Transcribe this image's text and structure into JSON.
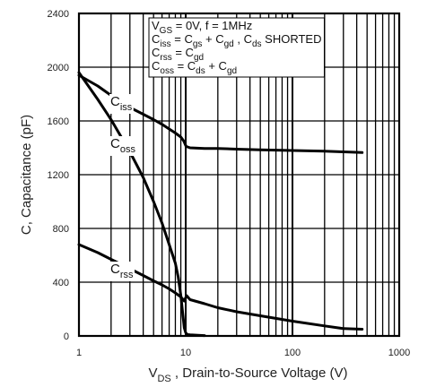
{
  "chart_data": {
    "type": "line",
    "title": "",
    "xlabel": {
      "main": "V",
      "sub": "DS",
      "rest": " , Drain-to-Source Voltage (V)"
    },
    "ylabel": "C, Capacitance (pF)",
    "xscale": "log",
    "xlim": [
      1,
      1000
    ],
    "ylim": [
      0,
      2400
    ],
    "x_ticks": [
      "1",
      "10",
      "100",
      "1000"
    ],
    "y_ticks": [
      "0",
      "400",
      "800",
      "1200",
      "1600",
      "2000",
      "2400"
    ],
    "grid": true,
    "notes": [
      [
        {
          "t": "V"
        },
        {
          "t": "GS",
          "sub": true
        },
        {
          "t": " = 0V,          f = 1MHz"
        }
      ],
      [
        {
          "t": "C"
        },
        {
          "t": "iss",
          "sub": true
        },
        {
          "t": " = C"
        },
        {
          "t": "gs",
          "sub": true
        },
        {
          "t": " + C"
        },
        {
          "t": "gd",
          "sub": true
        },
        {
          "t": " ,   C"
        },
        {
          "t": "ds",
          "sub": true
        },
        {
          "t": "  SHORTED"
        }
      ],
      [
        {
          "t": "C"
        },
        {
          "t": "rss",
          "sub": true
        },
        {
          "t": " = C"
        },
        {
          "t": "gd",
          "sub": true
        }
      ],
      [
        {
          "t": "C"
        },
        {
          "t": "oss",
          "sub": true
        },
        {
          "t": " = C"
        },
        {
          "t": "ds",
          "sub": true
        },
        {
          "t": " + C"
        },
        {
          "t": "gd",
          "sub": true
        }
      ]
    ],
    "series": [
      {
        "name": {
          "main": "C",
          "sub": "iss"
        },
        "x": [
          1,
          1.5,
          2,
          3,
          4,
          5,
          6,
          7,
          8,
          9,
          9.6,
          10.1,
          11,
          15,
          20,
          30,
          50,
          100,
          200,
          300,
          450
        ],
        "y": [
          1940,
          1860,
          1790,
          1700,
          1650,
          1610,
          1575,
          1540,
          1510,
          1480,
          1450,
          1410,
          1400,
          1395,
          1395,
          1390,
          1385,
          1380,
          1375,
          1370,
          1365
        ]
      },
      {
        "name": {
          "main": "C",
          "sub": "oss"
        },
        "x": [
          1,
          1.5,
          2,
          3,
          4,
          5,
          6,
          7,
          8,
          8.5,
          9,
          9.4,
          9.7,
          10,
          10.2,
          10.5,
          11,
          13,
          15
        ],
        "y": [
          1960,
          1760,
          1610,
          1370,
          1180,
          1000,
          840,
          680,
          540,
          440,
          300,
          160,
          60,
          25,
          15,
          10,
          8,
          5,
          3
        ]
      },
      {
        "name": {
          "main": "C",
          "sub": "rss"
        },
        "x": [
          1,
          1.5,
          2,
          3,
          4,
          5,
          6,
          7,
          8,
          9,
          9.7,
          10.2,
          11,
          15,
          20,
          30,
          50,
          100,
          200,
          300,
          450
        ],
        "y": [
          680,
          620,
          570,
          500,
          450,
          410,
          380,
          350,
          320,
          290,
          260,
          300,
          270,
          240,
          210,
          180,
          150,
          110,
          75,
          55,
          50
        ]
      }
    ]
  }
}
